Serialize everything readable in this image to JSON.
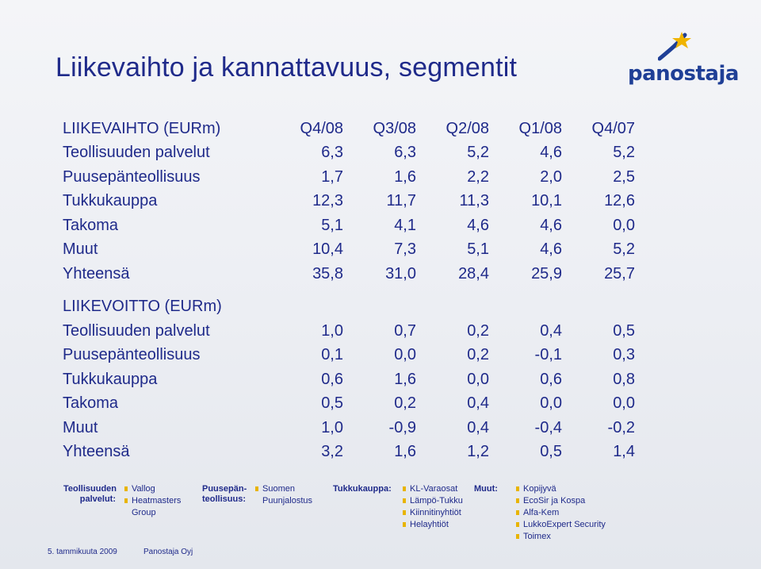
{
  "title": "Liikevaihto ja kannattavuus, segmentit",
  "logo": {
    "text": "panostaja",
    "brand_color": "#1f3f96",
    "accent_color": "#f0b400"
  },
  "columns": [
    "Q4/08",
    "Q3/08",
    "Q2/08",
    "Q1/08",
    "Q4/07"
  ],
  "revenue": {
    "header": "LIIKEVAIHTO (EURm)",
    "rows": [
      {
        "label": "Teollisuuden palvelut",
        "values": [
          "6,3",
          "6,3",
          "5,2",
          "4,6",
          "5,2"
        ]
      },
      {
        "label": "Puusepänteollisuus",
        "values": [
          "1,7",
          "1,6",
          "2,2",
          "2,0",
          "2,5"
        ]
      },
      {
        "label": "Tukkukauppa",
        "values": [
          "12,3",
          "11,7",
          "11,3",
          "10,1",
          "12,6"
        ]
      },
      {
        "label": "Takoma",
        "values": [
          "5,1",
          "4,1",
          "4,6",
          "4,6",
          "0,0"
        ]
      },
      {
        "label": "Muut",
        "values": [
          "10,4",
          "7,3",
          "5,1",
          "4,6",
          "5,2"
        ]
      },
      {
        "label": "Yhteensä",
        "values": [
          "35,8",
          "31,0",
          "28,4",
          "25,9",
          "25,7"
        ]
      }
    ]
  },
  "profit": {
    "header": "LIIKEVOITTO (EURm)",
    "rows": [
      {
        "label": "Teollisuuden palvelut",
        "values": [
          "1,0",
          "0,7",
          "0,2",
          "0,4",
          "0,5"
        ]
      },
      {
        "label": "Puusepänteollisuus",
        "values": [
          "0,1",
          "0,0",
          "0,2",
          "-0,1",
          "0,3"
        ]
      },
      {
        "label": "Tukkukauppa",
        "values": [
          "0,6",
          "1,6",
          "0,0",
          "0,6",
          "0,8"
        ]
      },
      {
        "label": "Takoma",
        "values": [
          "0,5",
          "0,2",
          "0,4",
          "0,0",
          "0,0"
        ]
      },
      {
        "label": "Muut",
        "values": [
          "1,0",
          "-0,9",
          "0,4",
          "-0,4",
          "-0,2"
        ]
      },
      {
        "label": "Yhteensä",
        "values": [
          "3,2",
          "1,6",
          "1,2",
          "0,5",
          "1,4"
        ]
      }
    ]
  },
  "segments": [
    {
      "label_line1": "Teollisuuden",
      "label_line2": "palvelut:",
      "items": [
        "Vallog",
        "Heatmasters Group"
      ]
    },
    {
      "label_line1": "Puusepän-",
      "label_line2": "teollisuus:",
      "items": [
        "Suomen Puunjalostus"
      ]
    },
    {
      "label_line1": "Tukkukauppa:",
      "label_line2": "",
      "items": [
        "KL-Varaosat",
        "Lämpö-Tukku",
        "Kiinnitinyhtiöt",
        "Helayhtiöt"
      ]
    },
    {
      "label_line1": "Muut:",
      "label_line2": "",
      "items": [
        "Kopijyvä",
        "EcoSir ja Kospa",
        "Alfa-Kem",
        "LukkoExpert Security",
        "Toimex"
      ]
    }
  ],
  "footer": {
    "date": "5. tammikuuta 2009",
    "company": "Panostaja Oyj"
  }
}
